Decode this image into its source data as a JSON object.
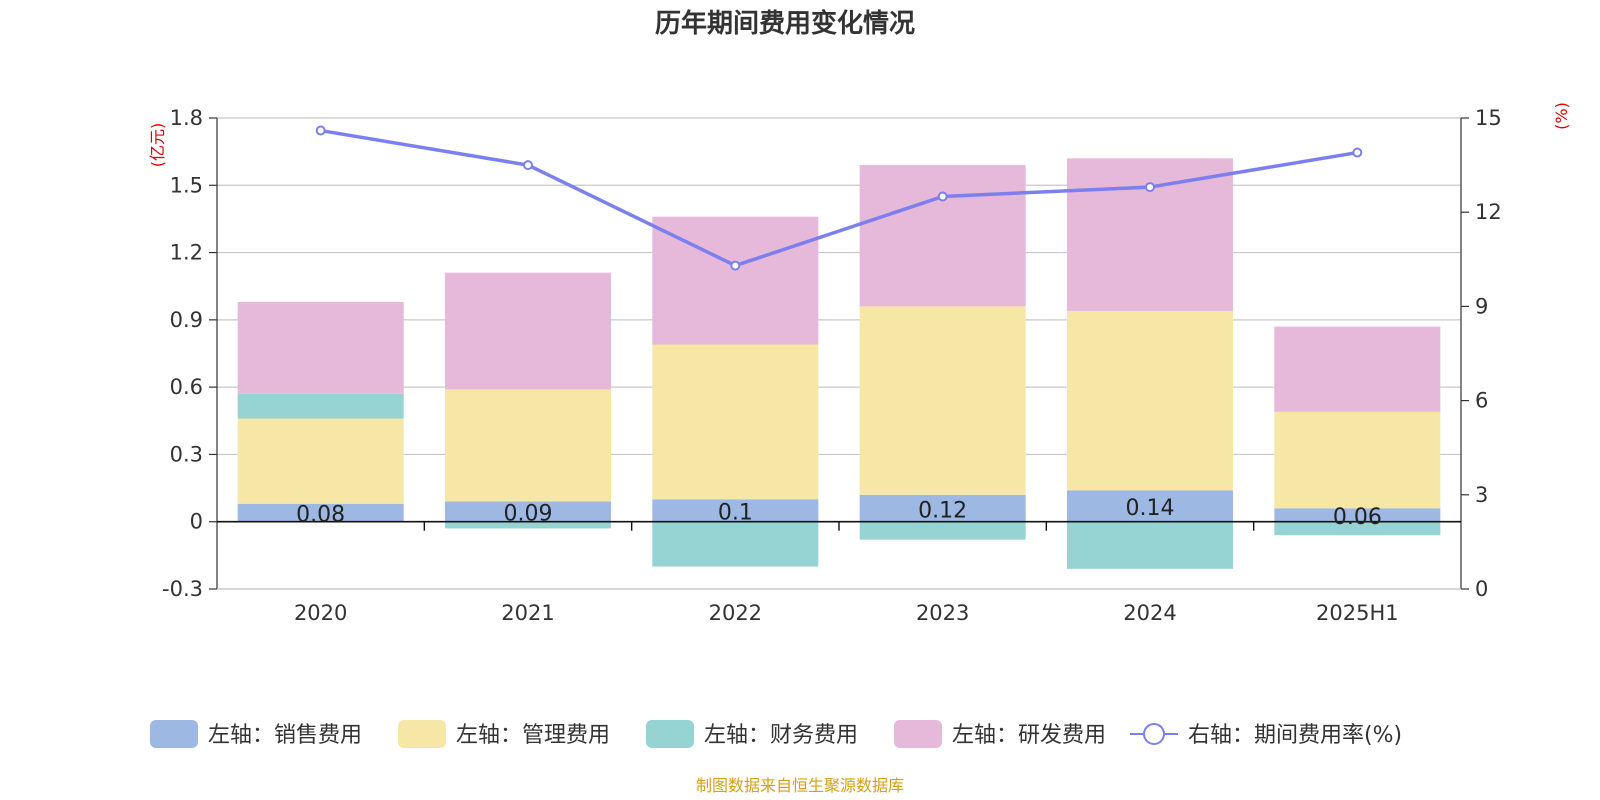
{
  "chart_data": {
    "title": "历年期间费用变化情况",
    "type": "bar",
    "stacked": true,
    "categories": [
      "2020",
      "2021",
      "2022",
      "2023",
      "2024",
      "2025H1"
    ],
    "left_axis": {
      "unit": "(亿元)",
      "ylim": [
        -0.3,
        1.8
      ],
      "ticks": [
        "1.8",
        "1.5",
        "1.2",
        "0.9",
        "0.6",
        "0.3",
        "0",
        "-0.3"
      ]
    },
    "right_axis": {
      "unit": "(%)",
      "ylim": [
        0,
        15
      ],
      "ticks": [
        "15",
        "12",
        "9",
        "6",
        "3",
        "0"
      ]
    },
    "series": [
      {
        "name": "左轴：销售费用",
        "type": "bar",
        "axis": "left",
        "color": "#9db8e2",
        "values": [
          0.08,
          0.09,
          0.1,
          0.12,
          0.14,
          0.06
        ],
        "labels": [
          "0.08",
          "0.09",
          "0.1",
          "0.12",
          "0.14",
          "0.06"
        ]
      },
      {
        "name": "左轴：管理费用",
        "type": "bar",
        "axis": "left",
        "color": "#f7e7a6",
        "values": [
          0.38,
          0.5,
          0.69,
          0.84,
          0.8,
          0.43
        ]
      },
      {
        "name": "左轴：财务费用",
        "type": "bar",
        "axis": "left",
        "color": "#96d3d3",
        "values": [
          0.11,
          -0.03,
          -0.2,
          -0.08,
          -0.21,
          -0.06
        ]
      },
      {
        "name": "左轴：研发费用",
        "type": "bar",
        "axis": "left",
        "color": "#e6b8d9",
        "values": [
          0.41,
          0.52,
          0.57,
          0.63,
          0.68,
          0.38
        ]
      },
      {
        "name": "右轴：期间费用率(%)",
        "type": "line",
        "axis": "right",
        "color": "#7b80ee",
        "values": [
          14.6,
          13.5,
          10.3,
          12.5,
          12.8,
          13.9
        ]
      }
    ]
  },
  "footer": {
    "source": "制图数据来自恒生聚源数据库"
  }
}
